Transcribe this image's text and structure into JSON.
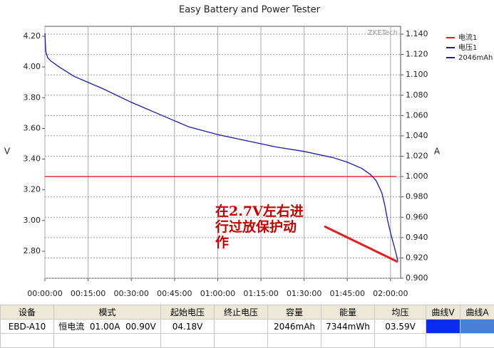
{
  "chart_data": {
    "type": "line",
    "title": "Easy Battery and Power Tester",
    "y_label": "V",
    "y2_label": "A",
    "watermark": "ZKETech",
    "annotation": [
      "在2.7V左右进",
      "行过放保护动",
      "作"
    ],
    "xlim": [
      0,
      123.5
    ],
    "xticks": [
      {
        "value": 0,
        "label": "00:00:00"
      },
      {
        "value": 15,
        "label": "00:15:00"
      },
      {
        "value": 30,
        "label": "00:30:00"
      },
      {
        "value": 45,
        "label": "00:45:00"
      },
      {
        "value": 60,
        "label": "01:00:00"
      },
      {
        "value": 75,
        "label": "01:15:00"
      },
      {
        "value": 90,
        "label": "01:30:00"
      },
      {
        "value": 105,
        "label": "01:45:00"
      },
      {
        "value": 120,
        "label": "02:00:00"
      }
    ],
    "ylim": [
      2.624,
      4.265
    ],
    "yticks": [
      {
        "value": 2.8,
        "label": "2.80"
      },
      {
        "value": 3.0,
        "label": "3.00"
      },
      {
        "value": 3.2,
        "label": "3.20"
      },
      {
        "value": 3.4,
        "label": "3.40"
      },
      {
        "value": 3.6,
        "label": "3.60"
      },
      {
        "value": 3.8,
        "label": "3.80"
      },
      {
        "value": 4.0,
        "label": "4.00"
      },
      {
        "value": 4.2,
        "label": "4.20"
      }
    ],
    "y2lim": [
      0.9,
      1.1477
    ],
    "y2ticks": [
      {
        "value": 0.9,
        "label": "0.900"
      },
      {
        "value": 0.92,
        "label": "0.920"
      },
      {
        "value": 0.94,
        "label": "0.940"
      },
      {
        "value": 0.96,
        "label": "0.960"
      },
      {
        "value": 0.98,
        "label": "0.980"
      },
      {
        "value": 1.0,
        "label": "1.000"
      },
      {
        "value": 1.02,
        "label": "1.020"
      },
      {
        "value": 1.04,
        "label": "1.040"
      },
      {
        "value": 1.06,
        "label": "1.060"
      },
      {
        "value": 1.08,
        "label": "1.080"
      },
      {
        "value": 1.1,
        "label": "1.100"
      },
      {
        "value": 1.12,
        "label": "1.120"
      },
      {
        "value": 1.14,
        "label": "1.140"
      }
    ],
    "series": [
      {
        "name": "电流1",
        "color": "#e02020",
        "axis": "y2",
        "x": [
          0,
          122
        ],
        "values": [
          1.0,
          1.0
        ]
      },
      {
        "name": "电压1",
        "color": "#1a1aa8",
        "x": [
          0,
          0.3,
          1,
          2,
          5,
          10,
          15,
          20,
          30,
          40,
          45,
          50,
          60,
          70,
          75,
          80,
          90,
          100,
          105,
          110,
          113,
          115,
          117,
          118,
          119,
          120,
          121,
          122,
          122.5
        ],
        "values": [
          4.22,
          4.1,
          4.06,
          4.04,
          4.0,
          3.94,
          3.9,
          3.86,
          3.77,
          3.69,
          3.65,
          3.61,
          3.56,
          3.52,
          3.5,
          3.48,
          3.45,
          3.41,
          3.38,
          3.34,
          3.3,
          3.26,
          3.18,
          3.1,
          3.0,
          2.92,
          2.85,
          2.78,
          2.74
        ]
      }
    ],
    "legend_extra": {
      "name": "2046mAh",
      "color": "#1a1aa8"
    }
  },
  "table": {
    "headers": [
      "设备",
      "模式",
      "起始电压",
      "终止电压",
      "容量",
      "能量",
      "均压",
      "曲线V",
      "曲线A"
    ],
    "rows": [
      {
        "device": "EBD-A10",
        "mode": "恒电流  01.00A  00.90V",
        "start_voltage": "04.18V",
        "capacity": "2046mAh",
        "energy": "7344mWh",
        "avg_voltage": "03.59V"
      }
    ]
  }
}
